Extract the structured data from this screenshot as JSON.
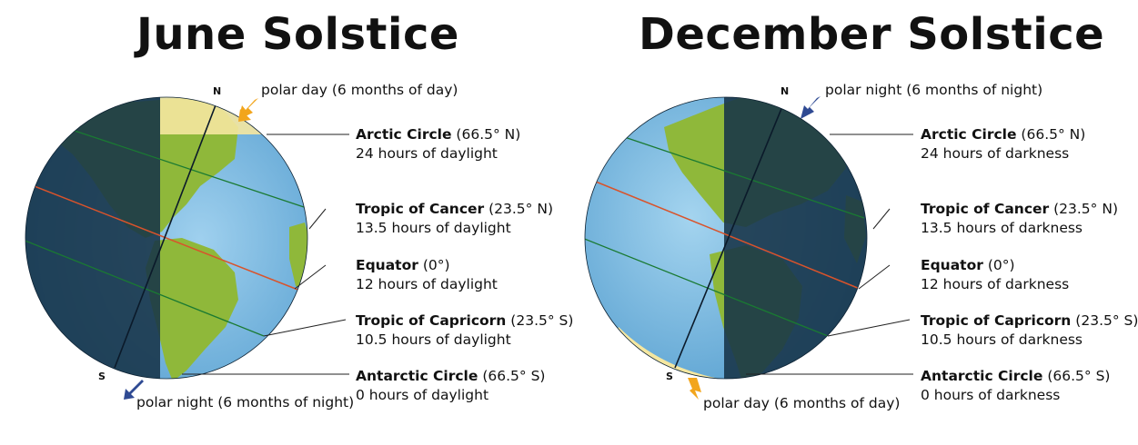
{
  "june": {
    "title": "June Solstice",
    "pole_n": "N",
    "pole_s": "S",
    "polar_top": "polar day (6 months of day)",
    "polar_bottom": "polar night (6 months of night)",
    "labels": [
      {
        "name": "Arctic Circle",
        "lat": "(66.5° N)",
        "hours": "24 hours of daylight"
      },
      {
        "name": "Tropic of Cancer",
        "lat": "(23.5° N)",
        "hours": "13.5 hours of daylight"
      },
      {
        "name": "Equator",
        "lat": "(0°)",
        "hours": "12 hours of daylight"
      },
      {
        "name": "Tropic of Capricorn",
        "lat": "(23.5° S)",
        "hours": "10.5 hours of daylight"
      },
      {
        "name": "Antarctic Circle",
        "lat": "(66.5° S)",
        "hours": "0 hours of daylight"
      }
    ]
  },
  "december": {
    "title": "December Solstice",
    "pole_n": "N",
    "pole_s": "S",
    "polar_top": "polar night (6 months of night)",
    "polar_bottom": "polar day (6 months of day)",
    "labels": [
      {
        "name": "Arctic Circle",
        "lat": "(66.5° N)",
        "hours": "24 hours of darkness"
      },
      {
        "name": "Tropic of Cancer",
        "lat": "(23.5° N)",
        "hours": "13.5 hours of darkness"
      },
      {
        "name": "Equator",
        "lat": "(0°)",
        "hours": "12 hours of darkness"
      },
      {
        "name": "Tropic of Capricorn",
        "lat": "(23.5° S)",
        "hours": "10.5 hours of darkness"
      },
      {
        "name": "Antarctic Circle",
        "lat": "(66.5° S)",
        "hours": "0 hours of darkness"
      }
    ]
  },
  "colors": {
    "ocean_lit": "#5aa8d8",
    "ocean_dark": "#173348",
    "land_lit": "#8fb83a",
    "land_dark": "#1f2d22",
    "polar_day": "#f5e7a0",
    "polar_night": "#2f4a93",
    "arrow_day": "#f2a51c",
    "arrow_night": "#2f4a93",
    "tropic_line": "#2a8a3a",
    "equator_line": "#d9532b"
  }
}
